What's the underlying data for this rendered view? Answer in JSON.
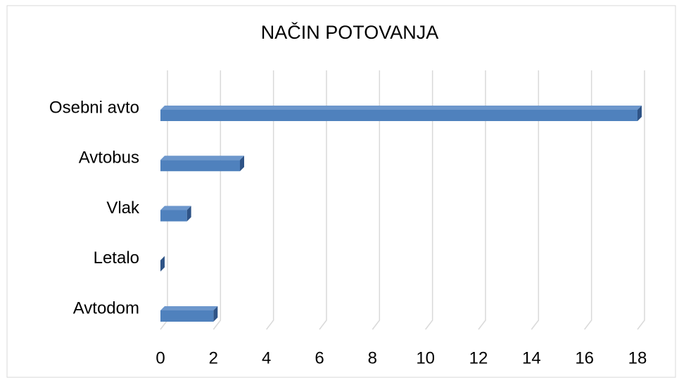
{
  "chart_data": {
    "type": "bar3d",
    "orientation": "horizontal",
    "title": "NAČIN  POTOVANJA",
    "categories": [
      "Osebni avto",
      "Avtobus",
      "Vlak",
      "Letalo",
      "Avtodom"
    ],
    "values": [
      18,
      3,
      1,
      0,
      2
    ],
    "color": "#4f81bd",
    "xlim": [
      0,
      18
    ],
    "xticks": [
      0,
      2,
      4,
      6,
      8,
      10,
      12,
      14,
      16,
      18
    ],
    "grid": true
  }
}
